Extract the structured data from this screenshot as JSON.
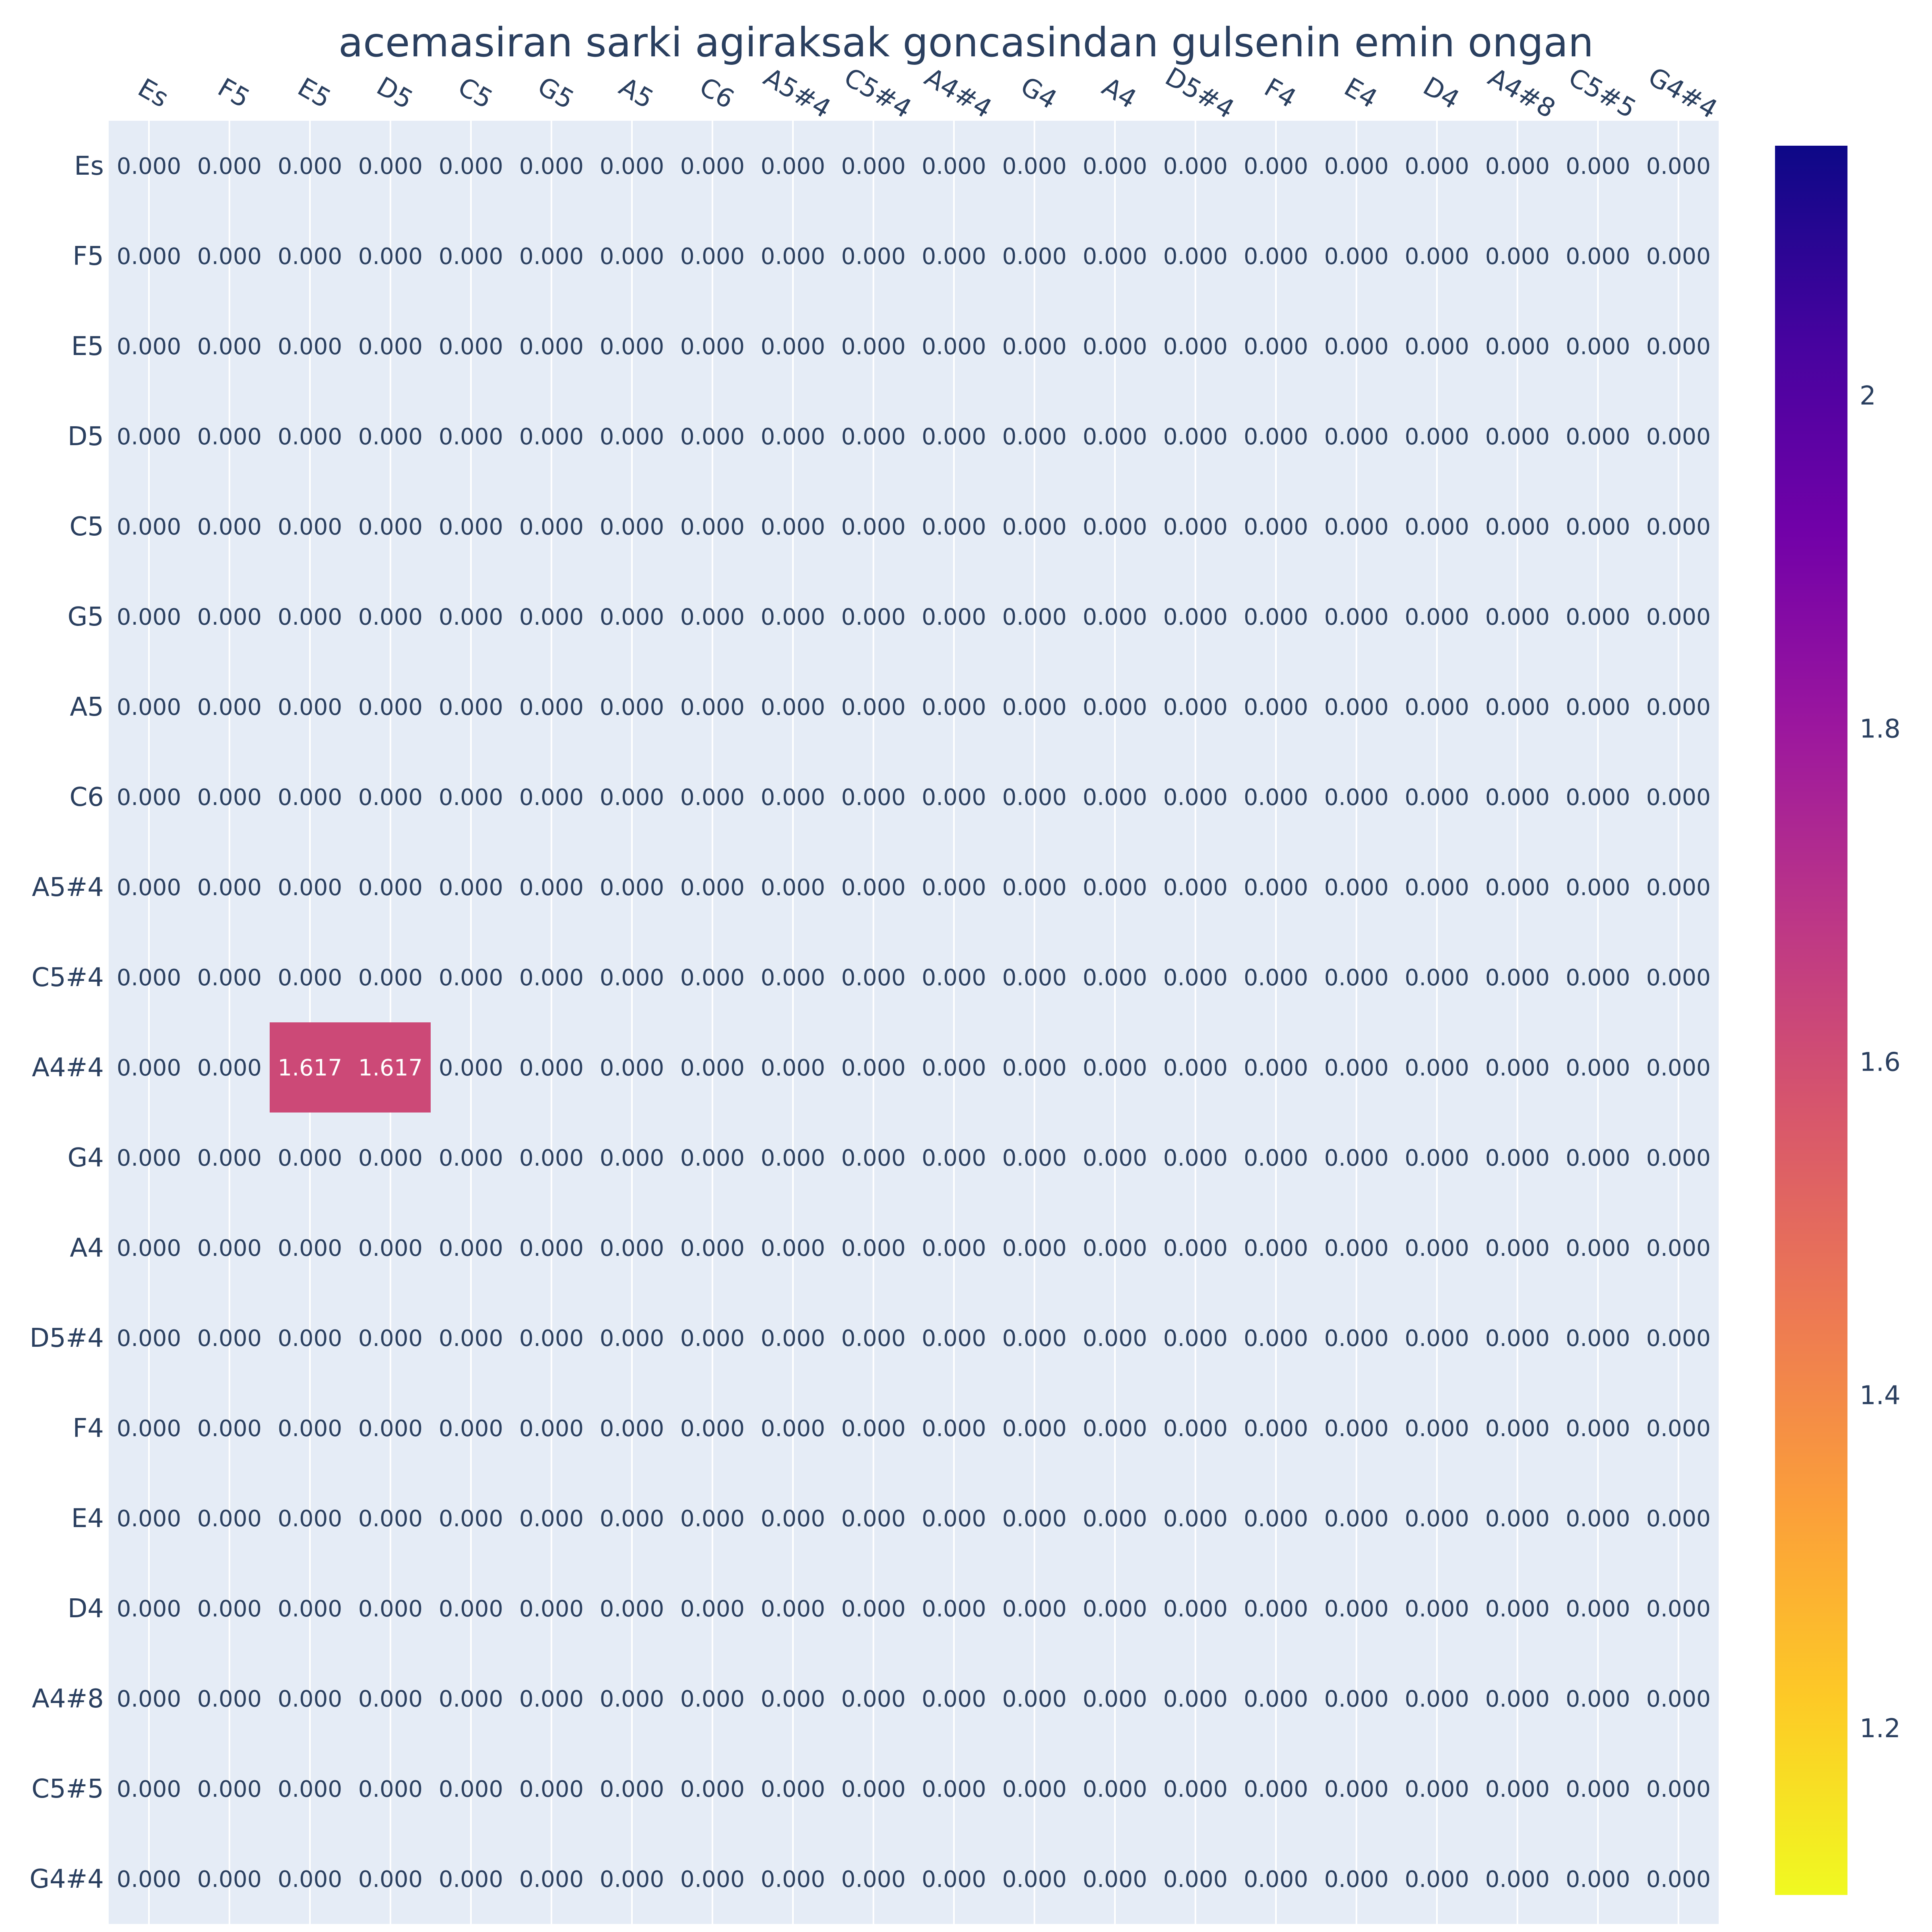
{
  "chart_data": {
    "type": "heatmap",
    "title": "acemasiran sarki agiraksak goncasindan gulsenin emin ongan",
    "x_categories": [
      "Es",
      "F5",
      "E5",
      "D5",
      "C5",
      "G5",
      "A5",
      "C6",
      "A5#4",
      "C5#4",
      "A4#4",
      "G4",
      "A4",
      "D5#4",
      "F4",
      "E4",
      "D4",
      "A4#8",
      "C5#5",
      "G4#4"
    ],
    "y_categories": [
      "Es",
      "F5",
      "E5",
      "D5",
      "C5",
      "G5",
      "A5",
      "C6",
      "A5#4",
      "C5#4",
      "A4#4",
      "G4",
      "A4",
      "D5#4",
      "F4",
      "E4",
      "D4",
      "A4#8",
      "C5#5",
      "G4#4"
    ],
    "nonzero_cells": [
      {
        "row": "A4#4",
        "col": "E5",
        "value": 1.617
      },
      {
        "row": "A4#4",
        "col": "D5",
        "value": 1.617
      }
    ],
    "default_value": 0.0,
    "value_format": "0.000",
    "zero_cells": "no color (background shown)",
    "x_axis_position": "top",
    "colorscale": "plasma (reversed)",
    "colorscale_stops": [
      "#f0f921",
      "#fdca26",
      "#fb9f3a",
      "#ed7953",
      "#d8576b",
      "#bd3786",
      "#9c179e",
      "#7201a8",
      "#46039f",
      "#0d0887"
    ],
    "colorbar": {
      "range": [
        1.1,
        2.15
      ],
      "ticks": [
        1.2,
        1.4,
        1.6,
        1.8,
        2
      ],
      "tick_labels": [
        "1.2",
        "1.4",
        "1.6",
        "1.8",
        "2"
      ]
    },
    "plot_background": "#e5ecf6",
    "gridline_color": "#ffffff",
    "grid": true
  }
}
